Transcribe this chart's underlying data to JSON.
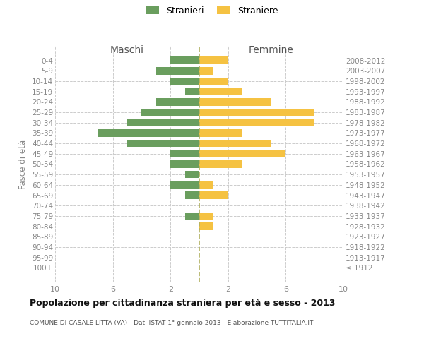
{
  "age_groups": [
    "100+",
    "95-99",
    "90-94",
    "85-89",
    "80-84",
    "75-79",
    "70-74",
    "65-69",
    "60-64",
    "55-59",
    "50-54",
    "45-49",
    "40-44",
    "35-39",
    "30-34",
    "25-29",
    "20-24",
    "15-19",
    "10-14",
    "5-9",
    "0-4"
  ],
  "birth_years": [
    "≤ 1912",
    "1913-1917",
    "1918-1922",
    "1923-1927",
    "1928-1932",
    "1933-1937",
    "1938-1942",
    "1943-1947",
    "1948-1952",
    "1953-1957",
    "1958-1962",
    "1963-1967",
    "1968-1972",
    "1973-1977",
    "1978-1982",
    "1983-1987",
    "1988-1992",
    "1993-1997",
    "1998-2002",
    "2003-2007",
    "2008-2012"
  ],
  "maschi": [
    0,
    0,
    0,
    0,
    0,
    1,
    0,
    1,
    2,
    1,
    2,
    2,
    5,
    7,
    5,
    4,
    3,
    1,
    2,
    3,
    2
  ],
  "femmine": [
    0,
    0,
    0,
    0,
    1,
    1,
    0,
    2,
    1,
    0,
    3,
    6,
    5,
    3,
    8,
    8,
    5,
    3,
    2,
    1,
    2
  ],
  "color_maschi": "#6a9e5e",
  "color_femmine": "#f5c242",
  "title": "Popolazione per cittadinanza straniera per età e sesso - 2013",
  "subtitle": "COMUNE DI CASALE LITTA (VA) - Dati ISTAT 1° gennaio 2013 - Elaborazione TUTTITALIA.IT",
  "ylabel_left": "Fasce di età",
  "legend_maschi": "Stranieri",
  "legend_femmine": "Straniere",
  "xlim": 10,
  "header_maschi": "Maschi",
  "header_femmine": "Femmine",
  "bg_color": "#ffffff",
  "grid_color": "#cccccc"
}
